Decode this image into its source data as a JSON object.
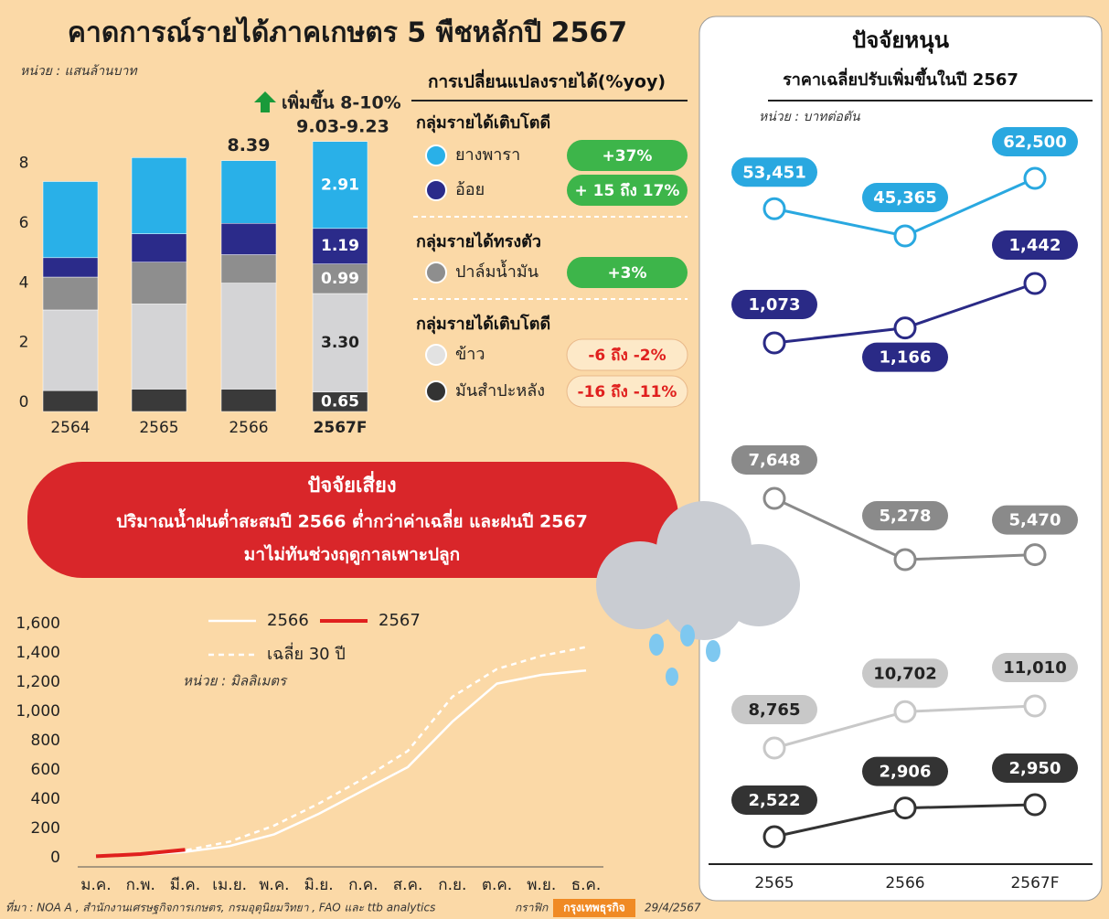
{
  "title": "คาดการณ์รายได้ภาคเกษตร 5 พืชหลักปี 2567",
  "chart_data": [
    {
      "type": "bar",
      "stacked": true,
      "unit": "หน่วย : แสนล้านบาท",
      "categories": [
        "2564",
        "2565",
        "2566",
        "2567F"
      ],
      "ylim": [
        0,
        9.4
      ],
      "yticks": [
        0,
        2,
        4,
        6,
        8
      ],
      "series": [
        {
          "color": "#3a3a3a",
          "values": [
            0.7,
            0.75,
            0.75,
            0.65
          ]
        },
        {
          "color": "#d4d4d6",
          "values": [
            2.7,
            2.85,
            3.55,
            3.3
          ],
          "value_labels": [
            null,
            null,
            null,
            "3.30"
          ]
        },
        {
          "color": "#8e8e8e",
          "values": [
            1.1,
            1.4,
            0.95,
            0.99
          ]
        },
        {
          "color": "#2b2b8a",
          "values": [
            0.65,
            0.95,
            1.05,
            1.19
          ]
        },
        {
          "color": "#29b0e8",
          "values": [
            2.55,
            2.55,
            2.1,
            2.91
          ]
        }
      ],
      "total_labels": [
        null,
        null,
        "8.39",
        "9.03-9.23"
      ],
      "annotation": "เพิ่มขึ้น 8-10%"
    },
    {
      "type": "line",
      "unit": "หน่วย : มิลลิเมตร",
      "categories": [
        "ม.ค.",
        "ก.พ.",
        "มี.ค.",
        "เม.ย.",
        "พ.ค.",
        "มิ.ย.",
        "ก.ค.",
        "ส.ค.",
        "ก.ย.",
        "ต.ค.",
        "พ.ย.",
        "ธ.ค."
      ],
      "ylim": [
        0,
        1600
      ],
      "yticks": [
        0,
        200,
        400,
        600,
        800,
        {
          "value": 1000,
          "label": "1,000"
        },
        {
          "value": 1200,
          "label": "1,200"
        },
        {
          "value": 1400,
          "label": "1,400"
        },
        {
          "value": 1600,
          "label": "1,600"
        }
      ],
      "series": [
        {
          "name": "2566",
          "color": "#ffffff",
          "values": [
            10,
            20,
            40,
            80,
            160,
            300,
            460,
            620,
            930,
            1190,
            1250,
            1280
          ]
        },
        {
          "name": "2567",
          "color": "#e0201e",
          "values": [
            10,
            25,
            55,
            null,
            null,
            null,
            null,
            null,
            null,
            null,
            null,
            null
          ]
        },
        {
          "name": "เฉลี่ย 30 ปี",
          "color": "#ffffff",
          "dashed": true,
          "values": [
            10,
            25,
            50,
            110,
            220,
            370,
            540,
            730,
            1100,
            1290,
            1380,
            1440
          ]
        }
      ]
    },
    {
      "type": "multiline",
      "title": "ปัจจัยหนุน",
      "subtitle": "ราคาเฉลี่ยปรับเพิ่มขึ้นในปี 2567",
      "unit": "หน่วย : บาทต่อตัน",
      "categories": [
        "2565",
        "2566",
        "2567F"
      ],
      "series": [
        {
          "color": "#29a8e0",
          "values": [
            53451,
            45365,
            62500
          ],
          "value_labels": [
            "53,451",
            "45,365",
            "62,500"
          ]
        },
        {
          "color": "#2a2a86",
          "values": [
            1073,
            1166,
            1442
          ],
          "value_labels": [
            "1,073",
            "1,166",
            "1,442"
          ]
        },
        {
          "color": "#8a8a8a",
          "values": [
            7648,
            5278,
            5470
          ],
          "value_labels": [
            "7,648",
            "5,278",
            "5,470"
          ]
        },
        {
          "color": "#c8c8c8",
          "values": [
            8765,
            10702,
            11010
          ],
          "value_labels": [
            "8,765",
            "10,702",
            "11,010"
          ]
        },
        {
          "color": "#333333",
          "values": [
            2522,
            2906,
            2950
          ],
          "value_labels": [
            "2,522",
            "2,906",
            "2,950"
          ]
        }
      ]
    }
  ],
  "yoy": {
    "title": "การเปลี่ยนแปลงรายได้(%yoy)",
    "groups": [
      {
        "label": "กลุ่มรายได้เติบโตดี",
        "items": [
          {
            "label": "ยางพารา",
            "change": "+37%",
            "color": "#29b0e8"
          },
          {
            "label": "อ้อย",
            "change": "+ 15 ถึง 17%",
            "color": "#2b2b8a"
          }
        ]
      },
      {
        "label": "กลุ่มรายได้ทรงตัว",
        "items": [
          {
            "label": "ปาล์มน้ำมัน",
            "change": "+3%",
            "color": "#8e8e8e"
          }
        ]
      },
      {
        "label": "กลุ่มรายได้เติบโตดี",
        "items": [
          {
            "label": "ข้าว",
            "change": "-6 ถึง -2%",
            "color": "#e2e2e2"
          },
          {
            "label": "มันสำปะหลัง",
            "change": "-16 ถึง -11%",
            "color": "#333333"
          }
        ]
      }
    ]
  },
  "risk": {
    "title": "ปัจจัยเสี่ยง",
    "lines": [
      "ปริมาณน้ำฝนต่ำสะสมปี 2566 ต่ำกว่าค่าเฉลี่ย และฝนปี 2567",
      "มาไม่ทันช่วงฤดูกาลเพาะปลูก"
    ]
  },
  "footer": {
    "source": "ที่มา : NOA A , สำนักงานเศรษฐกิจการเกษตร, กรมอุตุนิยมวิทยา , FAO และ ttb analytics",
    "graphic": "กราฟิก",
    "brand": "กรุงเทพธุรกิจ",
    "date": "29/4/2567"
  }
}
